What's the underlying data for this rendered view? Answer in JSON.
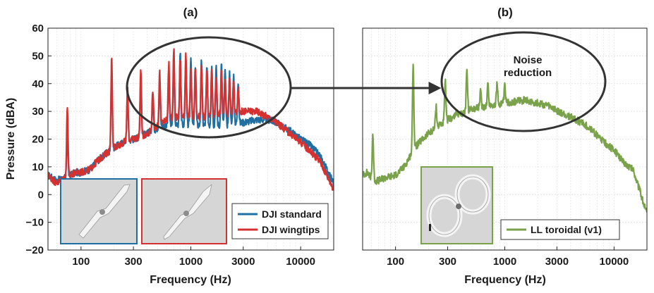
{
  "colors": {
    "dji_standard": "#1f6fa3",
    "dji_wingtips": "#d63131",
    "ll_toroidal": "#7aa24a",
    "annotation": "#333333",
    "grid": "#cfcfcf",
    "inset_bg": "#d6d6d6"
  },
  "chart_data": [
    {
      "type": "line",
      "panel_label": "(a)",
      "xlabel": "Frequency (Hz)",
      "ylabel": "Pressure (dBA)",
      "xscale": "log",
      "xlim": [
        50,
        20000
      ],
      "ylim": [
        -20,
        60
      ],
      "xticks": [
        100,
        300,
        1000,
        3000,
        10000
      ],
      "xtick_labels": [
        "100",
        "300",
        "1000",
        "3000",
        "10000"
      ],
      "yticks": [
        -20,
        -10,
        0,
        10,
        20,
        30,
        40,
        50,
        60
      ],
      "ytick_labels": [
        "−20",
        "−10",
        "0",
        "10",
        "20",
        "30",
        "40",
        "50",
        "60"
      ],
      "grid": true,
      "legend_position": "bottom-right",
      "series": [
        {
          "name": "DJI standard",
          "color": "#1f6fa3",
          "baseline": [
            [
              50,
              7
            ],
            [
              60,
              5
            ],
            [
              70,
              6
            ],
            [
              80,
              7
            ],
            [
              90,
              8
            ],
            [
              100,
              8
            ],
            [
              120,
              9
            ],
            [
              140,
              12
            ],
            [
              160,
              14
            ],
            [
              200,
              17
            ],
            [
              250,
              19
            ],
            [
              300,
              20
            ],
            [
              400,
              22
            ],
            [
              500,
              24
            ],
            [
              600,
              25
            ],
            [
              800,
              25
            ],
            [
              1000,
              25
            ],
            [
              1500,
              25
            ],
            [
              2000,
              25
            ],
            [
              3000,
              26
            ],
            [
              4000,
              27
            ],
            [
              5000,
              27
            ],
            [
              6000,
              26
            ],
            [
              8000,
              23
            ],
            [
              10000,
              20
            ],
            [
              12000,
              18
            ],
            [
              15000,
              14
            ],
            [
              20000,
              4
            ]
          ],
          "peaks": [
            [
              75,
              22
            ],
            [
              190,
              45
            ],
            [
              265,
              36
            ],
            [
              350,
              43
            ],
            [
              450,
              35
            ],
            [
              520,
              42
            ],
            [
              630,
              44
            ],
            [
              700,
              48
            ],
            [
              800,
              52
            ],
            [
              900,
              49
            ],
            [
              1000,
              50
            ],
            [
              1100,
              47
            ],
            [
              1250,
              48
            ],
            [
              1400,
              46
            ],
            [
              1550,
              47
            ],
            [
              1700,
              46
            ],
            [
              1900,
              47
            ],
            [
              2050,
              44
            ],
            [
              2250,
              44
            ],
            [
              2450,
              43
            ],
            [
              2700,
              41
            ]
          ]
        },
        {
          "name": "DJI wingtips",
          "color": "#d63131",
          "baseline": [
            [
              50,
              7
            ],
            [
              60,
              4
            ],
            [
              70,
              6
            ],
            [
              80,
              7
            ],
            [
              90,
              8
            ],
            [
              100,
              8
            ],
            [
              120,
              9
            ],
            [
              140,
              12
            ],
            [
              160,
              14
            ],
            [
              200,
              17
            ],
            [
              250,
              19
            ],
            [
              300,
              20
            ],
            [
              400,
              22
            ],
            [
              500,
              25
            ],
            [
              600,
              27
            ],
            [
              800,
              28
            ],
            [
              1000,
              28
            ],
            [
              1500,
              28
            ],
            [
              2000,
              29
            ],
            [
              3000,
              30
            ],
            [
              4000,
              30
            ],
            [
              5000,
              28
            ],
            [
              6000,
              26
            ],
            [
              8000,
              22
            ],
            [
              10000,
              19
            ],
            [
              12000,
              16
            ],
            [
              15000,
              12
            ],
            [
              20000,
              2
            ]
          ],
          "peaks": [
            [
              75,
              32
            ],
            [
              190,
              49
            ],
            [
              265,
              39
            ],
            [
              350,
              46
            ],
            [
              450,
              38
            ],
            [
              520,
              44
            ],
            [
              630,
              47
            ],
            [
              700,
              53
            ],
            [
              800,
              48
            ],
            [
              900,
              51
            ],
            [
              1000,
              46
            ],
            [
              1100,
              45
            ],
            [
              1250,
              46
            ],
            [
              1400,
              44
            ],
            [
              1550,
              45
            ],
            [
              1700,
              43
            ],
            [
              1900,
              44
            ],
            [
              2050,
              42
            ],
            [
              2250,
              41
            ],
            [
              2450,
              40
            ],
            [
              2700,
              38
            ]
          ]
        }
      ]
    },
    {
      "type": "line",
      "panel_label": "(b)",
      "xlabel": "Frequency (Hz)",
      "xscale": "log",
      "xlim": [
        50,
        20000
      ],
      "ylim": [
        -20,
        60
      ],
      "xticks": [
        100,
        300,
        1000,
        3000,
        10000
      ],
      "xtick_labels": [
        "100",
        "300",
        "1000",
        "3000",
        "10000"
      ],
      "grid": true,
      "legend_position": "bottom-right",
      "series": [
        {
          "name": "LL toroidal (v1)",
          "color": "#7aa24a",
          "baseline": [
            [
              50,
              7
            ],
            [
              55,
              8
            ],
            [
              60,
              6
            ],
            [
              65,
              5
            ],
            [
              70,
              5
            ],
            [
              80,
              6
            ],
            [
              100,
              7
            ],
            [
              120,
              10
            ],
            [
              150,
              17
            ],
            [
              200,
              22
            ],
            [
              250,
              25
            ],
            [
              300,
              27
            ],
            [
              400,
              29
            ],
            [
              500,
              31
            ],
            [
              700,
              32
            ],
            [
              1000,
              33
            ],
            [
              1500,
              34
            ],
            [
              2000,
              33
            ],
            [
              2500,
              32
            ],
            [
              3000,
              30
            ],
            [
              4000,
              28
            ],
            [
              5000,
              26
            ],
            [
              6000,
              24
            ],
            [
              8000,
              19
            ],
            [
              10000,
              16
            ],
            [
              12000,
              12
            ],
            [
              15000,
              9
            ],
            [
              20000,
              -7
            ]
          ],
          "peaks": [
            [
              62,
              22
            ],
            [
              145,
              48
            ],
            [
              235,
              32
            ],
            [
              285,
              41
            ],
            [
              360,
              30
            ],
            [
              450,
              46
            ],
            [
              600,
              37
            ],
            [
              700,
              40
            ],
            [
              850,
              40
            ],
            [
              1000,
              39
            ]
          ]
        }
      ]
    }
  ],
  "annotations": {
    "ellipse_label_line1": "Noise",
    "ellipse_label_line2": "reduction"
  }
}
